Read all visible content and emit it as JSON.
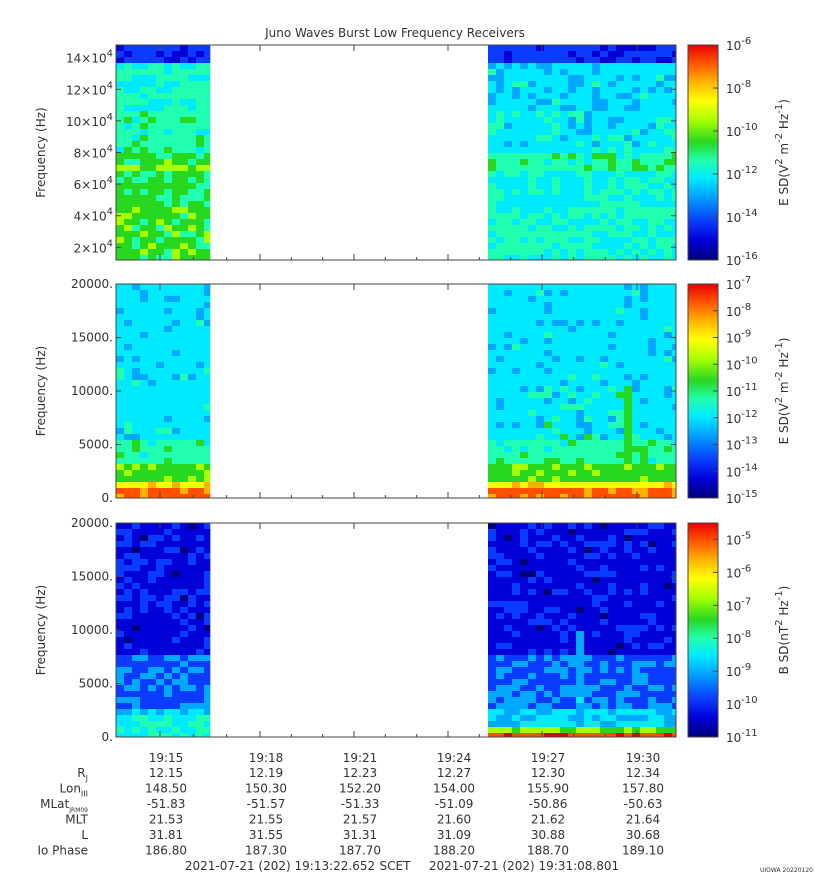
{
  "title": "Juno Waves Burst Low Frequency Receivers",
  "colors": {
    "colormap": [
      "#00007a",
      "#0000d8",
      "#0a3cff",
      "#00a8ff",
      "#00eaff",
      "#20ffb0",
      "#28d820",
      "#a8ff00",
      "#ffff00",
      "#ffb000",
      "#ff5000",
      "#e80000"
    ]
  },
  "chart_data": [
    {
      "type": "heatmap",
      "name": "panel-e-field-high",
      "ylabel": "Frequency (Hz)",
      "ylim": [
        12000,
        148000
      ],
      "yticks": [
        20000,
        40000,
        60000,
        80000,
        100000,
        120000,
        140000
      ],
      "ytick_labels": [
        {
          "mant": "2×10",
          "exp": "4"
        },
        {
          "mant": "4×10",
          "exp": "4"
        },
        {
          "mant": "6×10",
          "exp": "4"
        },
        {
          "mant": "8×10",
          "exp": "4"
        },
        {
          "mant": "10×10",
          "exp": "4"
        },
        {
          "mant": "12×10",
          "exp": "4"
        },
        {
          "mant": "14×10",
          "exp": "4"
        }
      ],
      "colorbar": {
        "label_base": "E SD(V",
        "label_rest": " m",
        "label_tail": " Hz",
        "ticks": [
          {
            "mant": "10",
            "exp": "-6"
          },
          {
            "mant": "10",
            "exp": "-8"
          },
          {
            "mant": "10",
            "exp": "-10"
          },
          {
            "mant": "10",
            "exp": "-12"
          },
          {
            "mant": "10",
            "exp": "-14"
          },
          {
            "mant": "10",
            "exp": "-16"
          }
        ],
        "range_log10": [
          -16,
          -6
        ]
      },
      "data_gap_minutes": [
        19.2,
        19.475
      ]
    },
    {
      "type": "heatmap",
      "name": "panel-e-field-low",
      "ylabel": "Frequency (Hz)",
      "ylim": [
        0,
        20000
      ],
      "yticks": [
        0,
        5000,
        10000,
        15000,
        20000
      ],
      "ytick_labels": [
        "0.",
        "5000.",
        "10000.",
        "15000.",
        "20000."
      ],
      "colorbar": {
        "label_base": "E SD(V",
        "label_rest": " m",
        "label_tail": " Hz",
        "ticks": [
          {
            "mant": "10",
            "exp": "-7"
          },
          {
            "mant": "10",
            "exp": "-8"
          },
          {
            "mant": "10",
            "exp": "-9"
          },
          {
            "mant": "10",
            "exp": "-10"
          },
          {
            "mant": "10",
            "exp": "-11"
          },
          {
            "mant": "10",
            "exp": "-12"
          },
          {
            "mant": "10",
            "exp": "-13"
          },
          {
            "mant": "10",
            "exp": "-14"
          },
          {
            "mant": "10",
            "exp": "-15"
          }
        ],
        "range_log10": [
          -15,
          -7
        ]
      },
      "data_gap_minutes": [
        19.2,
        19.475
      ]
    },
    {
      "type": "heatmap",
      "name": "panel-b-field",
      "ylabel": "Frequency (Hz)",
      "ylim": [
        0,
        20000
      ],
      "yticks": [
        0,
        5000,
        10000,
        15000,
        20000
      ],
      "ytick_labels": [
        "0.",
        "5000.",
        "10000.",
        "15000.",
        "20000."
      ],
      "colorbar": {
        "label_base": "B SD(nT",
        "label_rest": " Hz",
        "ticks": [
          {
            "mant": "10",
            "exp": "-5"
          },
          {
            "mant": "10",
            "exp": "-6"
          },
          {
            "mant": "10",
            "exp": "-7"
          },
          {
            "mant": "10",
            "exp": "-8"
          },
          {
            "mant": "10",
            "exp": "-9"
          },
          {
            "mant": "10",
            "exp": "-10"
          },
          {
            "mant": "10",
            "exp": "-11"
          }
        ],
        "range_log10": [
          -11,
          -4.5
        ]
      },
      "data_gap_minutes": [
        19.2,
        19.475
      ]
    }
  ],
  "time_axis": {
    "labels": [
      "19:15",
      "19:18",
      "19:21",
      "19:24",
      "19:27",
      "19:30"
    ]
  },
  "ephemeris": [
    {
      "label": "R",
      "sub": "J",
      "values": [
        "12.15",
        "12.19",
        "12.23",
        "12.27",
        "12.30",
        "12.34"
      ]
    },
    {
      "label": "Lon",
      "sub": "III",
      "values": [
        "148.50",
        "150.30",
        "152.20",
        "154.00",
        "155.90",
        "157.80"
      ]
    },
    {
      "label": "MLat",
      "sub": "JRM09",
      "values": [
        "-51.83",
        "-51.57",
        "-51.33",
        "-51.09",
        "-50.86",
        "-50.63"
      ]
    },
    {
      "label": "MLT",
      "sub": "",
      "values": [
        "21.53",
        "21.55",
        "21.57",
        "21.60",
        "21.62",
        "21.64"
      ]
    },
    {
      "label": "L",
      "sub": "",
      "values": [
        "31.81",
        "31.55",
        "31.31",
        "31.09",
        "30.88",
        "30.68"
      ]
    },
    {
      "label": "Io Phase",
      "sub": "",
      "values": [
        "186.80",
        "187.30",
        "187.70",
        "188.20",
        "188.70",
        "189.10"
      ]
    }
  ],
  "footer": {
    "start": "2021-07-21 (202) 19:13:22.652",
    "scet": "SCET",
    "end": "2021-07-21 (202) 19:31:08.801",
    "stamp": "UIOWA 20220120"
  }
}
